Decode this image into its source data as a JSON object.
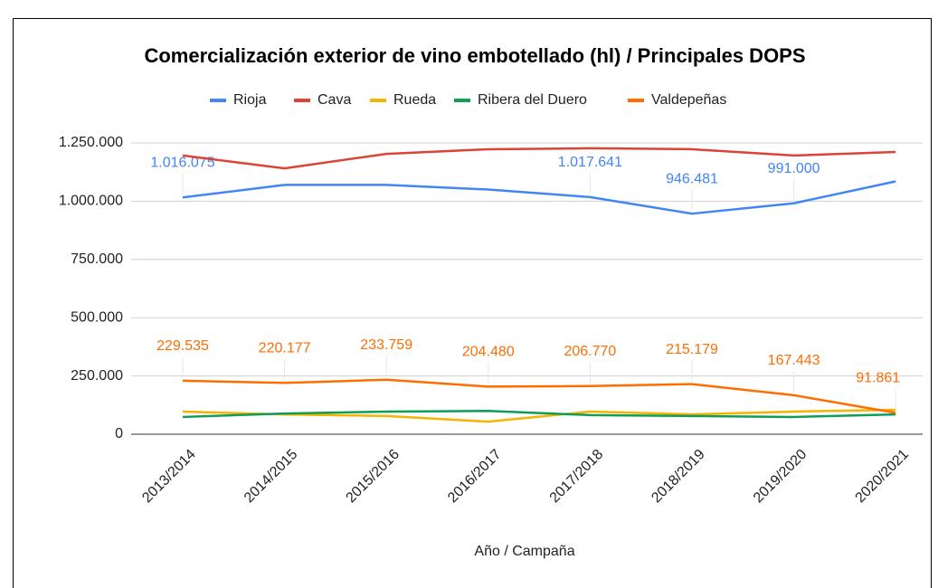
{
  "chart_data": {
    "type": "line",
    "title": "Comercialización exterior de vino embotellado (hl) / Principales DOPS",
    "x_label": "Año / Campaña",
    "categories": [
      "2013/2014",
      "2014/2015",
      "2015/2016",
      "2016/2017",
      "2017/2018",
      "2018/2019",
      "2019/2020",
      "2020/2021"
    ],
    "series": [
      {
        "name": "Rioja",
        "color": "#4285f4",
        "values": [
          1016075,
          1070000,
          1070000,
          1050000,
          1017641,
          946481,
          991000,
          1085000
        ],
        "value_labels": [
          "1.016.075",
          null,
          null,
          null,
          "1.017.641",
          "946.481",
          "991.000",
          null
        ]
      },
      {
        "name": "Cava",
        "color": "#db4437",
        "values": [
          1196000,
          1141000,
          1203000,
          1223000,
          1227000,
          1223000,
          1196000,
          1211000
        ]
      },
      {
        "name": "Rueda",
        "color": "#f4b400",
        "values": [
          97000,
          85000,
          78000,
          54000,
          97000,
          85000,
          97000,
          105000
        ]
      },
      {
        "name": "Ribera del Duero",
        "color": "#0f9d58",
        "values": [
          74000,
          89000,
          97000,
          100000,
          82000,
          78000,
          74000,
          85000
        ]
      },
      {
        "name": "Valdepeñas",
        "color": "#ff6d01",
        "values": [
          229535,
          220177,
          233759,
          204480,
          206770,
          215179,
          167443,
          91861
        ],
        "value_labels": [
          "229.535",
          "220.177",
          "233.759",
          "204.480",
          "206.770",
          "215.179",
          "167.443",
          "91.861"
        ]
      }
    ],
    "ylim": [
      0,
      1250000
    ],
    "yticks": [
      0,
      {
        "value": 250000,
        "label": "250.000"
      },
      {
        "value": 500000,
        "label": "500.000"
      },
      {
        "value": 750000,
        "label": "750.000"
      },
      {
        "value": 1000000,
        "label": "1.000.000"
      },
      {
        "value": 1250000,
        "label": "1.250.000"
      }
    ],
    "grid": true,
    "legend": "top"
  }
}
